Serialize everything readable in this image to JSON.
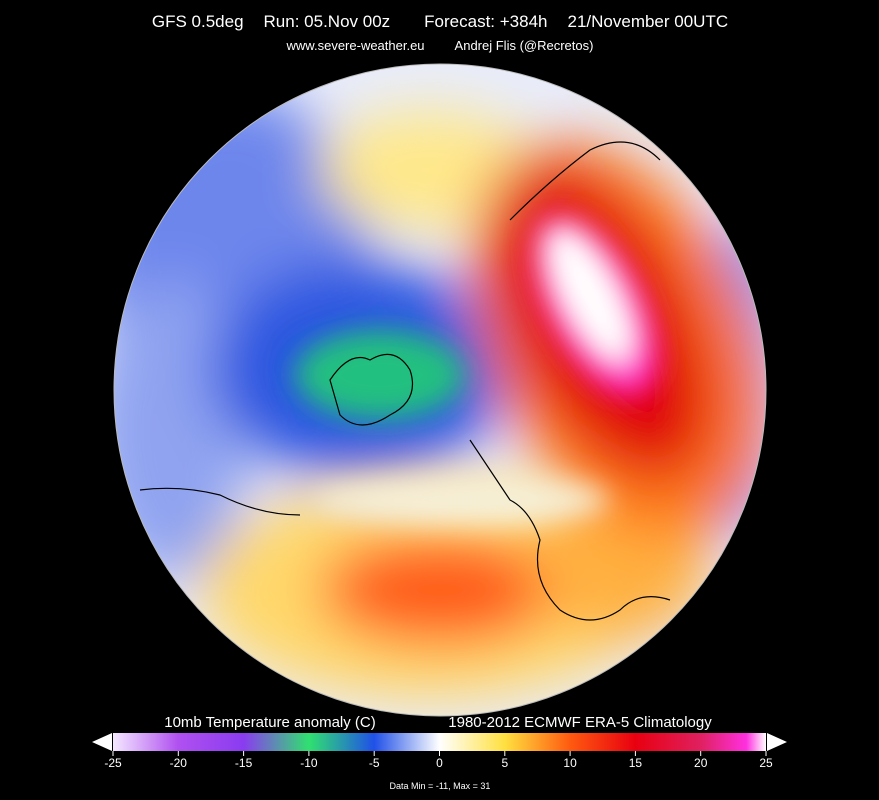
{
  "header": {
    "title": [
      "GFS 0.5deg",
      "Run: 05.Nov 00z",
      "Forecast: +384h",
      "21/November 00UTC"
    ],
    "subtitle": [
      "www.severe-weather.eu",
      "Andrej Flis (@Recretos)"
    ]
  },
  "colorbar": {
    "label_left": "10mb Temperature anomaly (C)",
    "label_right": "1980-2012 ECMWF ERA-5 Climatology",
    "lim": [
      -25,
      25
    ],
    "ticks": [
      -25,
      -20,
      -15,
      -10,
      -5,
      0,
      5,
      10,
      15,
      20,
      25
    ]
  },
  "footer": "Data Min = -11, Max = 31"
}
